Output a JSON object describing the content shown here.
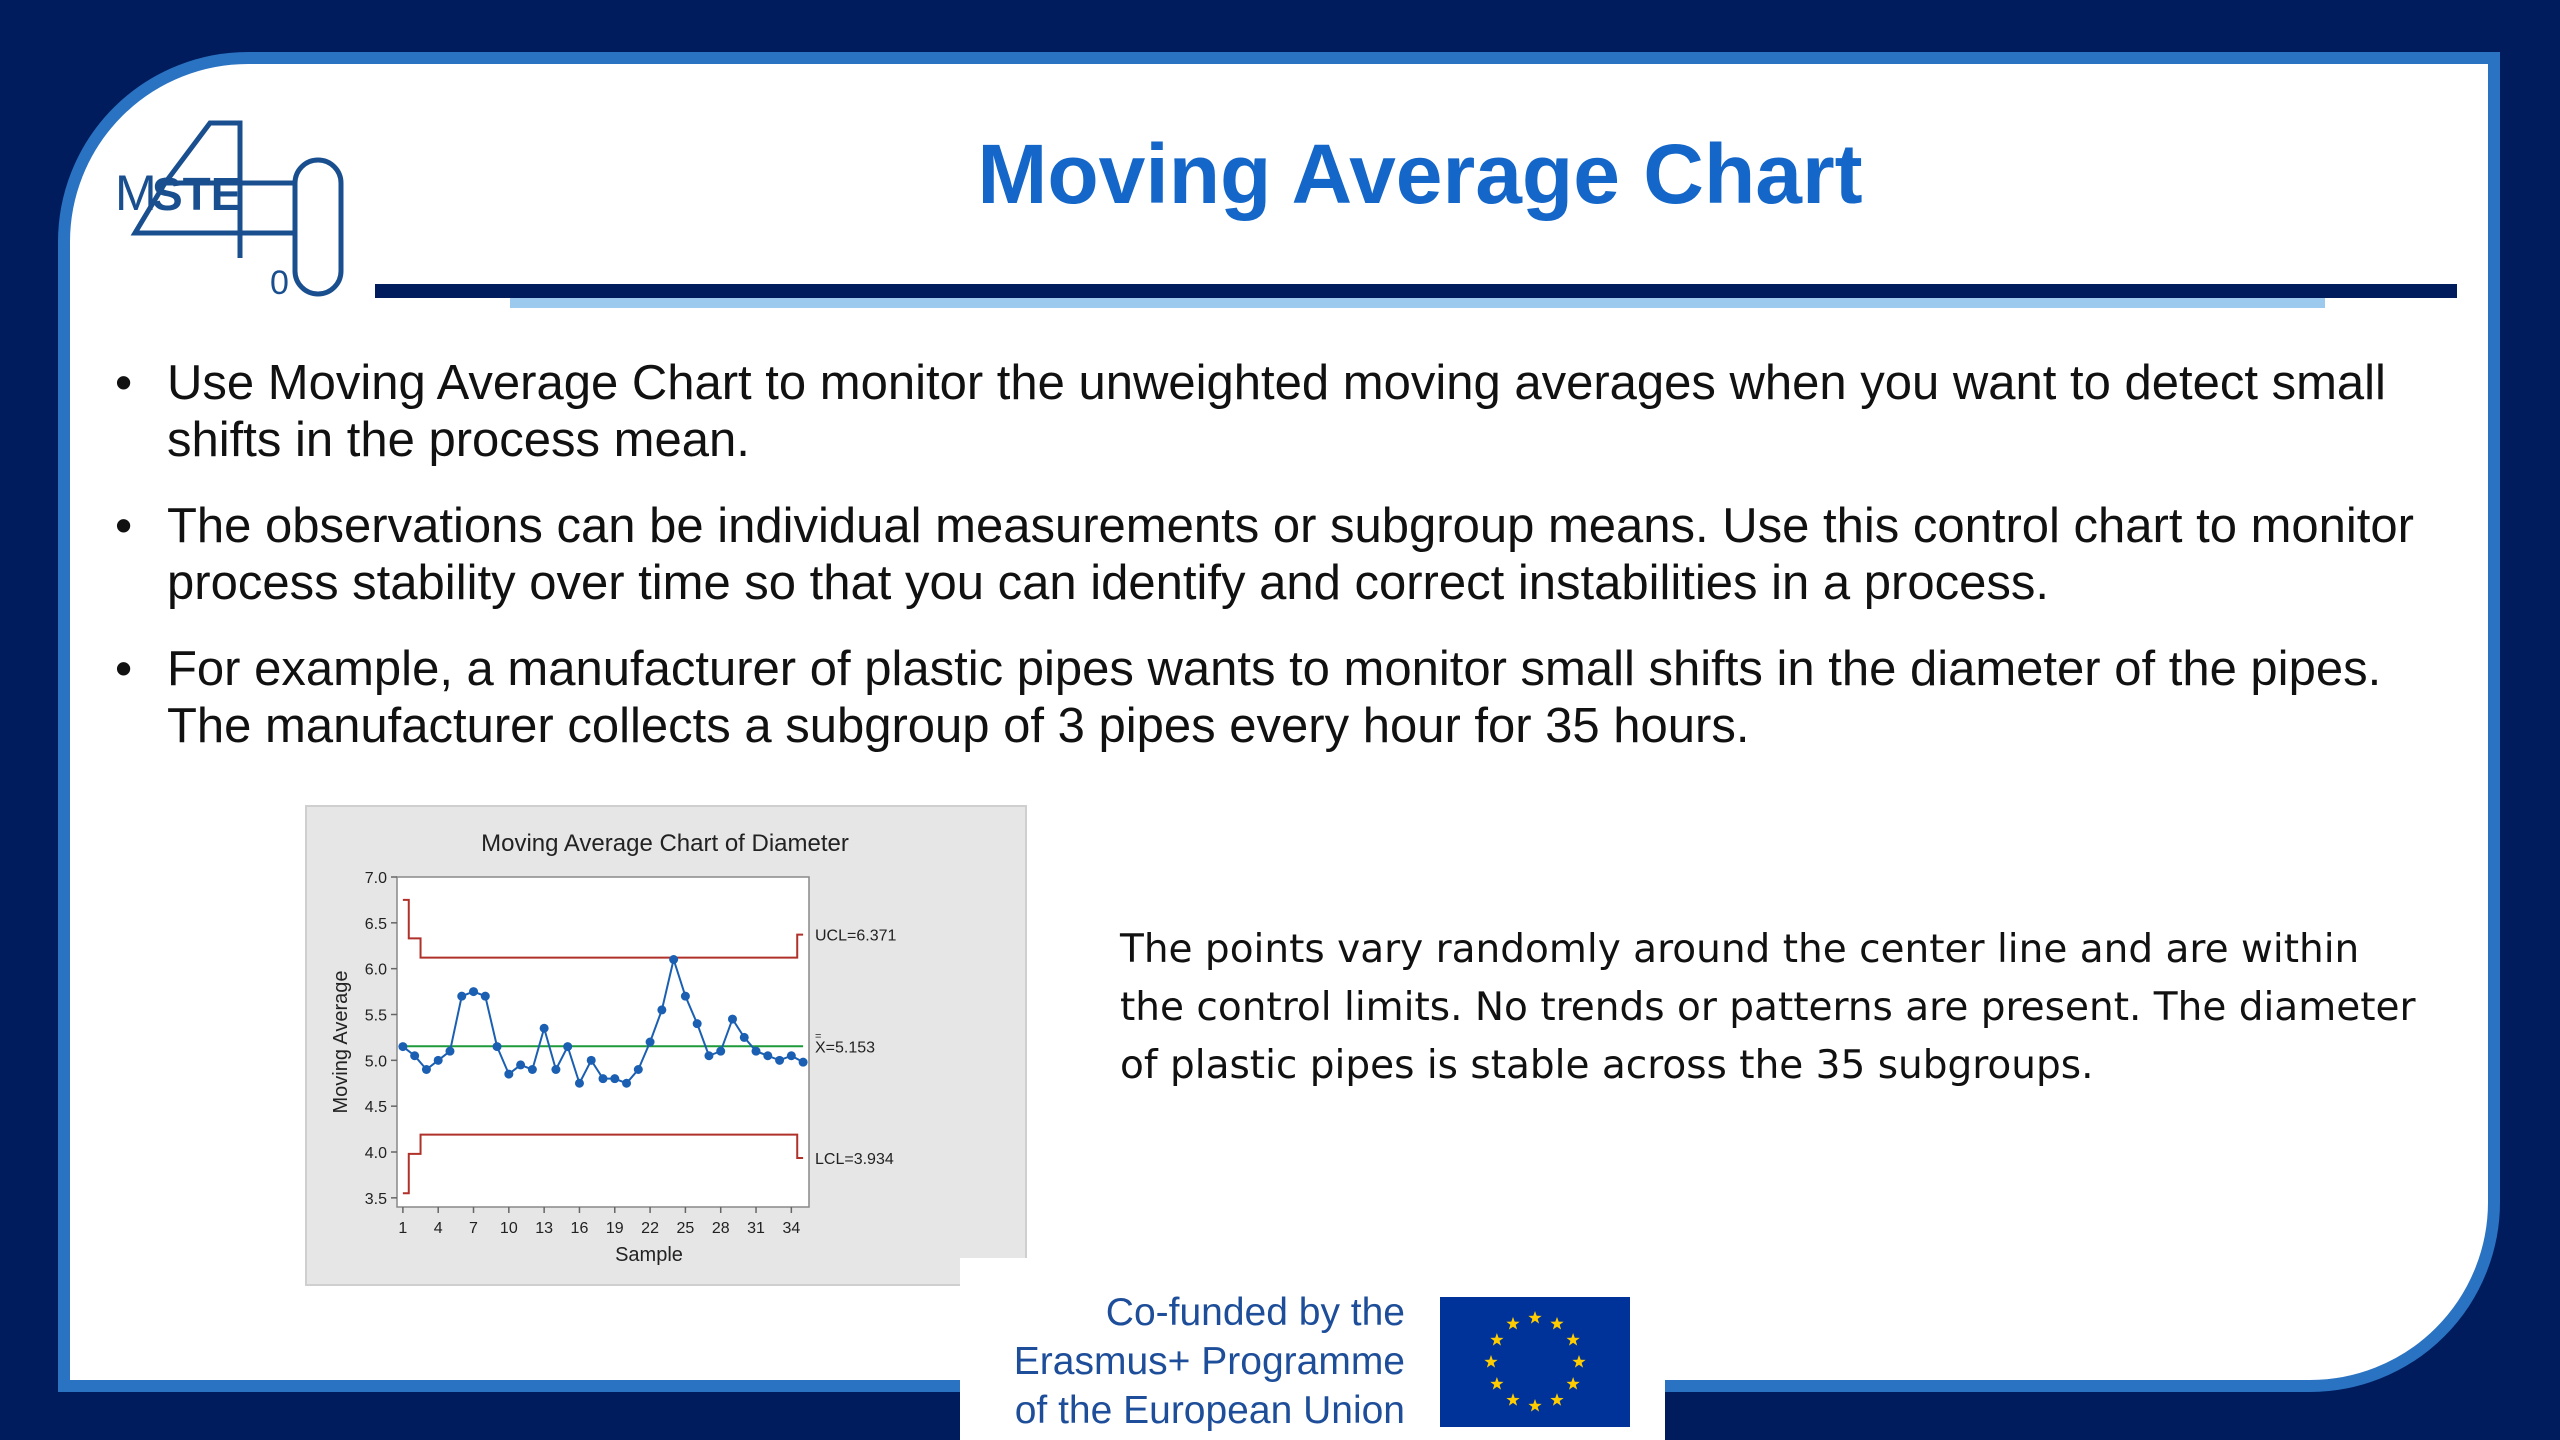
{
  "slide": {
    "title": "Moving Average Chart",
    "logo": {
      "text_m": "M",
      "text_ste": "STE",
      "numeral": "4",
      "subscript": "0"
    },
    "bullets": [
      {
        "marker": "•",
        "text": "Use Moving Average Chart to monitor the unweighted moving averages when you want to detect small shifts in the process mean."
      },
      {
        "marker": "•",
        "text": "The observations can be individual measurements or subgroup means. Use this control chart to monitor process stability over time so that you can identify and correct instabilities in a process."
      },
      {
        "marker": "•",
        "text": "For example, a manufacturer of plastic pipes wants to monitor small shifts in the diameter of the pipes. The manufacturer collects a subgroup of 3 pipes every hour for 35 hours."
      }
    ],
    "description": "The points vary randomly around the center line and are within the control limits. No trends or patterns are present. The diameter of plastic pipes is stable across the 35 subgroups.",
    "footer": {
      "cofund_lines": [
        "Co-funded by the",
        "Erasmus+ Programme",
        "of the European Union"
      ],
      "flag_name": "eu-flag-icon"
    },
    "colors": {
      "background": "#011c5c",
      "frame_border": "#2a73c2",
      "title": "#1467c8",
      "footer_text": "#1e4e99"
    }
  },
  "chart_data": {
    "type": "line",
    "title": "Moving Average Chart of Diameter",
    "xlabel": "Sample",
    "ylabel": "Moving Average",
    "x_ticks": [
      1,
      4,
      7,
      10,
      13,
      16,
      19,
      22,
      25,
      28,
      31,
      34
    ],
    "y_ticks": [
      "3.5",
      "4.0",
      "4.5",
      "5.0",
      "5.5",
      "6.0",
      "6.5",
      "7.0"
    ],
    "ylim": [
      3.4,
      7.0
    ],
    "xlim": [
      0.5,
      35.5
    ],
    "x": [
      1,
      2,
      3,
      4,
      5,
      6,
      7,
      8,
      9,
      10,
      11,
      12,
      13,
      14,
      15,
      16,
      17,
      18,
      19,
      20,
      21,
      22,
      23,
      24,
      25,
      26,
      27,
      28,
      29,
      30,
      31,
      32,
      33,
      34,
      35
    ],
    "series": [
      {
        "values": [
          5.15,
          5.05,
          4.9,
          5.0,
          5.1,
          5.7,
          5.75,
          5.7,
          5.15,
          4.85,
          4.95,
          4.9,
          5.35,
          4.9,
          5.15,
          4.75,
          5.0,
          4.8,
          4.8,
          4.75,
          4.9,
          5.2,
          5.55,
          6.1,
          5.7,
          5.4,
          5.05,
          5.1,
          5.45,
          5.25,
          5.1,
          5.05,
          5.0,
          5.05,
          4.98
        ]
      }
    ],
    "center_line": {
      "value": 5.153,
      "label": "X=5.153",
      "bar_marker": "="
    },
    "ucl": {
      "label": "UCL=6.371",
      "steps": [
        [
          1,
          6.75
        ],
        [
          2,
          6.33
        ],
        [
          3,
          6.12
        ],
        [
          34,
          6.12
        ],
        [
          35,
          6.371
        ]
      ]
    },
    "lcl": {
      "label": "LCL=3.934",
      "steps": [
        [
          1,
          3.55
        ],
        [
          2,
          3.98
        ],
        [
          3,
          4.19
        ],
        [
          34,
          4.19
        ],
        [
          35,
          3.934
        ]
      ]
    },
    "colors": {
      "points": "#1b5fb2",
      "center": "#1f9a3a",
      "limits": "#b0302a"
    }
  }
}
